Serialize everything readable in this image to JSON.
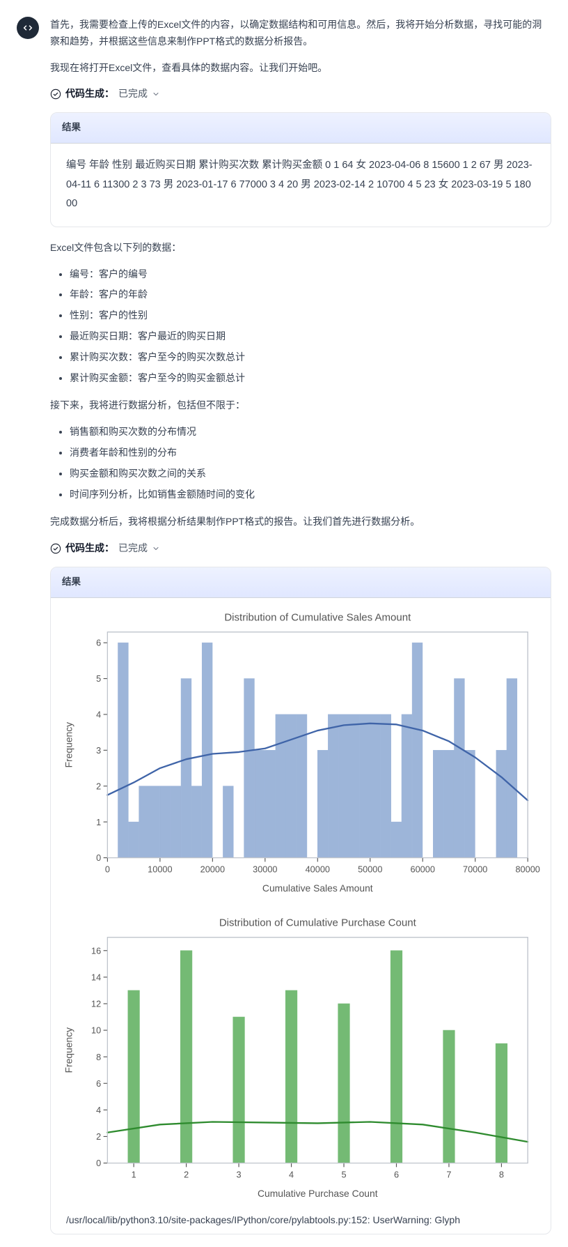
{
  "intro": {
    "p1": "首先，我需要检查上传的Excel文件的内容，以确定数据结构和可用信息。然后，我将开始分析数据，寻找可能的洞察和趋势，并根据这些信息来制作PPT格式的数据分析报告。",
    "p2": "我现在将打开Excel文件，查看具体的数据内容。让我们开始吧。"
  },
  "codeStatus": {
    "label": "代码生成：",
    "value": "已完成"
  },
  "result1": {
    "header": "结果",
    "body": "编号 年龄 性别 最近购买日期 累计购买次数 累计购买金额 0 1 64 女 2023-04-06 8 15600 1 2 67 男 2023-04-11 6 11300 2 3 73 男 2023-01-17 6 77000 3 4 20 男 2023-02-14 2 10700 4 5 23 女 2023-03-19 5 18000"
  },
  "afterResult1": {
    "intro": "Excel文件包含以下列的数据：",
    "cols": [
      "编号：客户的编号",
      "年龄：客户的年龄",
      "性别：客户的性别",
      "最近购买日期：客户最近的购买日期",
      "累计购买次数：客户至今的购买次数总计",
      "累计购买金额：客户至今的购买金额总计"
    ],
    "next": "接下来，我将进行数据分析，包括但不限于：",
    "analyses": [
      "销售额和购买次数的分布情况",
      "消费者年龄和性别的分布",
      "购买金额和购买次数之间的关系",
      "时间序列分析，比如销售金额随时间的变化"
    ],
    "final": "完成数据分析后，我将根据分析结果制作PPT格式的报告。让我们首先进行数据分析。"
  },
  "result2": {
    "header": "结果"
  },
  "chart1": {
    "type": "histogram",
    "title": "Distribution of Cumulative Sales Amount",
    "xlabel": "Cumulative Sales Amount",
    "ylabel": "Frequency",
    "title_fontsize": 13,
    "label_fontsize": 12,
    "tick_fontsize": 11,
    "xlim": [
      0,
      80000
    ],
    "ylim": [
      0,
      6.3
    ],
    "xtick_step": 10000,
    "ytick_step": 1,
    "bar_color": "#9db5d9",
    "bar_edge": "#9db5d9",
    "bar_width_ratio": 0.98,
    "kde_color": "#3f64a8",
    "kde_width": 2,
    "background_color": "#ffffff",
    "border_color": "#bfc4cc",
    "values": [
      0,
      6,
      1,
      2,
      2,
      2,
      2,
      5,
      2,
      6,
      0,
      2,
      0,
      5,
      3,
      3,
      4,
      4,
      4,
      0,
      3,
      4,
      4,
      4,
      4,
      4,
      4,
      1,
      4,
      6,
      0,
      3,
      3,
      5,
      3,
      0,
      0,
      3,
      5,
      0
    ],
    "kde_points": [
      [
        0,
        1.75
      ],
      [
        5000,
        2.1
      ],
      [
        10000,
        2.5
      ],
      [
        15000,
        2.75
      ],
      [
        20000,
        2.9
      ],
      [
        25000,
        2.95
      ],
      [
        30000,
        3.05
      ],
      [
        35000,
        3.3
      ],
      [
        40000,
        3.55
      ],
      [
        45000,
        3.7
      ],
      [
        50000,
        3.75
      ],
      [
        55000,
        3.72
      ],
      [
        60000,
        3.55
      ],
      [
        65000,
        3.25
      ],
      [
        70000,
        2.8
      ],
      [
        75000,
        2.25
      ],
      [
        80000,
        1.6
      ]
    ]
  },
  "chart2": {
    "type": "histogram",
    "title": "Distribution of Cumulative Purchase Count",
    "xlabel": "Cumulative Purchase Count",
    "ylabel": "Frequency",
    "title_fontsize": 13,
    "label_fontsize": 12,
    "tick_fontsize": 11,
    "xlim": [
      0.5,
      8.5
    ],
    "ylim": [
      0,
      17
    ],
    "xtick_step": 1,
    "ytick_step": 2,
    "bar_color": "#74ba74",
    "bar_edge": "#74ba74",
    "bar_width_ratio": 0.22,
    "kde_color": "#2e8b2e",
    "kde_width": 2,
    "background_color": "#ffffff",
    "border_color": "#bfc4cc",
    "categories": [
      1,
      2,
      3,
      4,
      5,
      6,
      7,
      8
    ],
    "values": [
      13,
      16,
      11,
      13,
      12,
      16,
      10,
      9
    ],
    "kde_points": [
      [
        0.5,
        2.3
      ],
      [
        1.5,
        2.9
      ],
      [
        2.5,
        3.1
      ],
      [
        3.5,
        3.05
      ],
      [
        4.5,
        3.0
      ],
      [
        5.5,
        3.1
      ],
      [
        6.5,
        2.9
      ],
      [
        7.5,
        2.3
      ],
      [
        8.5,
        1.6
      ]
    ]
  },
  "warning": "/usr/local/lib/python3.10/site-packages/IPython/core/pylabtools.py:152: UserWarning: Glyph"
}
